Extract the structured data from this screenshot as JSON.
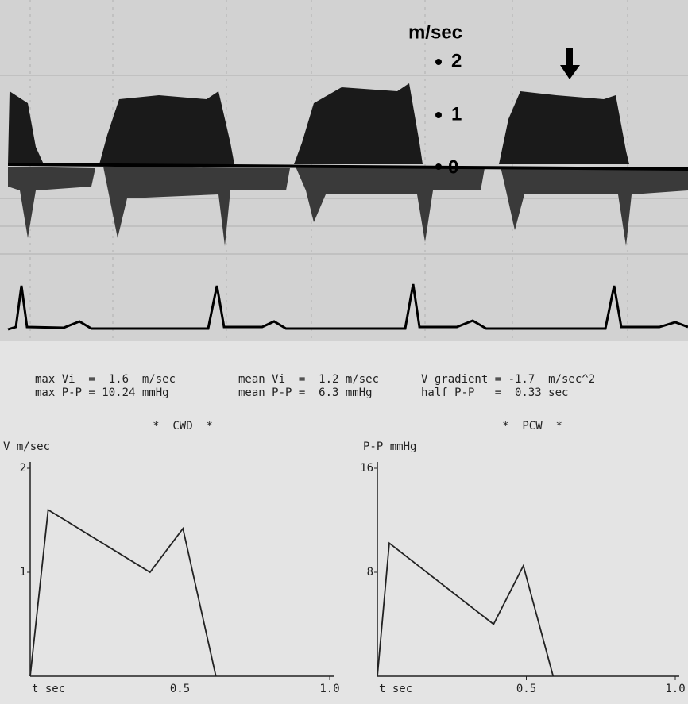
{
  "doppler": {
    "unit": "m/sec",
    "scale": [
      2,
      1,
      0
    ]
  },
  "measurements": [
    [
      "max Vi  =  1.6  m/sec",
      "mean Vi  =  1.2 m/sec",
      "V gradient = -1.7  m/sec^2"
    ],
    [
      "max P-P = 10.24 mmHg",
      "mean P-P =  6.3 mmHg",
      "half P-P   =  0.33 sec"
    ]
  ],
  "chart_data": [
    {
      "type": "line",
      "title": "*  CWD  *",
      "y_label": "V m/sec",
      "x_label": "t sec",
      "x": [
        0,
        0.06,
        0.4,
        0.51,
        0.62
      ],
      "values": [
        0,
        1.6,
        1.0,
        1.42,
        0
      ],
      "xlim": [
        0,
        1
      ],
      "xticks": [
        0.5,
        {
          "value": 1,
          "label": "1.0"
        }
      ],
      "ylim": [
        0,
        2
      ],
      "yticks": [
        1,
        2
      ],
      "color": "#222222"
    },
    {
      "type": "line",
      "title": "*  PCW  *",
      "y_label": "P-P mmHg",
      "x_label": "t sec",
      "x": [
        0,
        0.04,
        0.39,
        0.49,
        0.59
      ],
      "values": [
        0,
        10.24,
        4,
        8.5,
        0
      ],
      "xlim": [
        0,
        1
      ],
      "xticks": [
        0.5,
        {
          "value": 1,
          "label": "1.0"
        }
      ],
      "ylim": [
        0,
        16
      ],
      "yticks": [
        8,
        16
      ],
      "color": "#222222"
    }
  ]
}
